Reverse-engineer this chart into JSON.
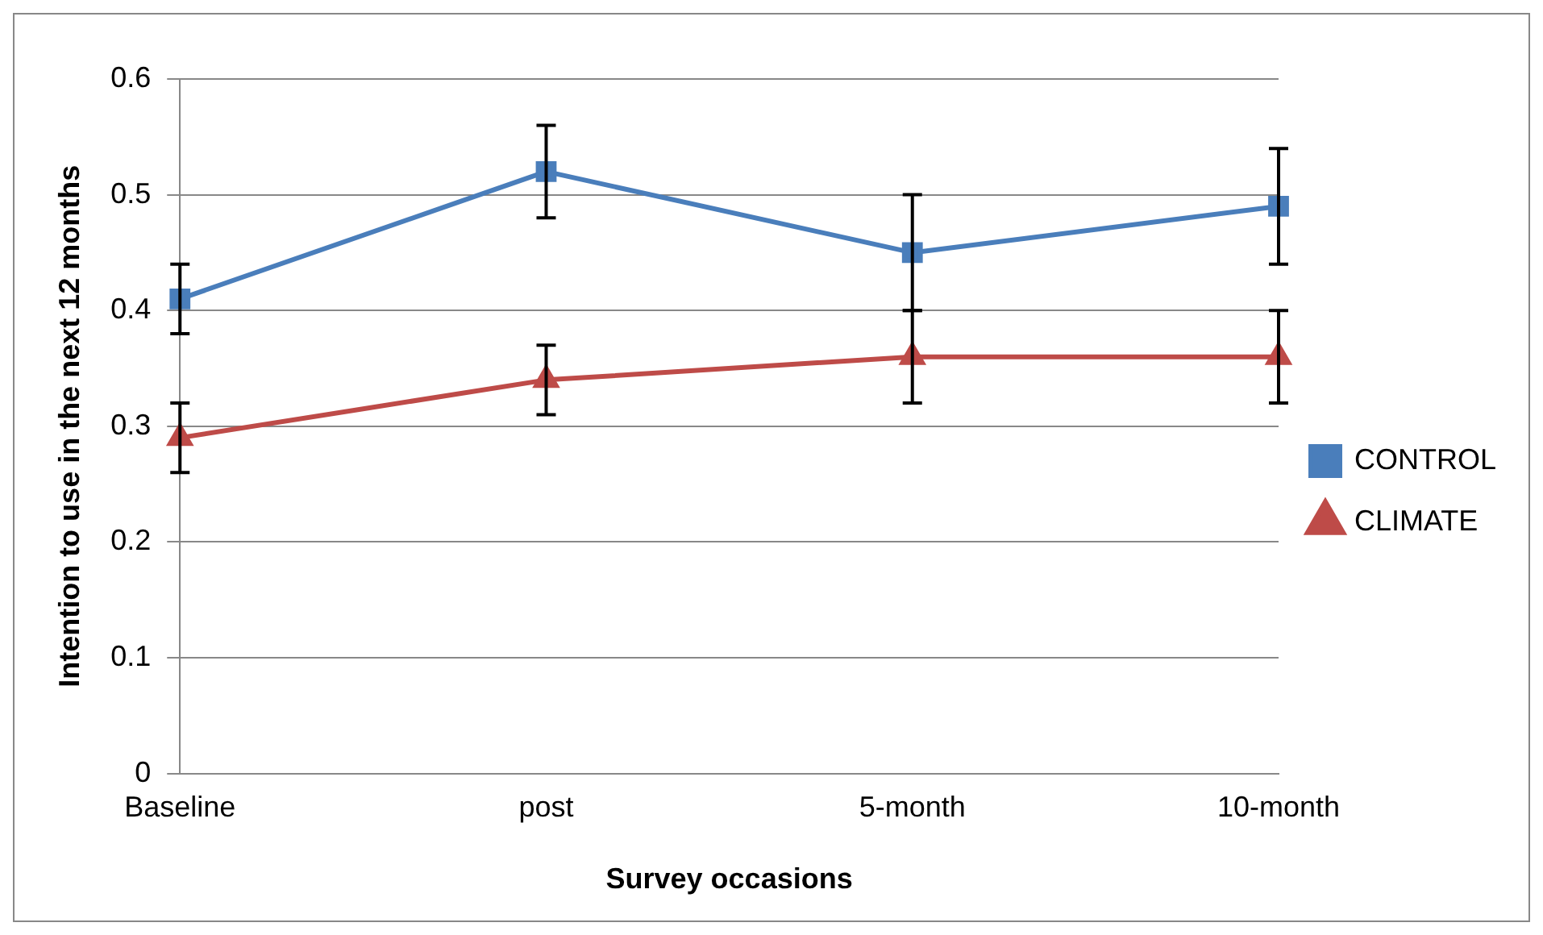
{
  "chart_data": {
    "type": "line",
    "xlabel": "Survey occasions",
    "ylabel": "Intention to use in the next 12 months",
    "categories": [
      "Baseline",
      "post",
      "5-month",
      "10-month"
    ],
    "series": [
      {
        "name": "CONTROL",
        "color": "#4a7ebb",
        "marker": "square",
        "values": [
          0.41,
          0.52,
          0.45,
          0.49
        ],
        "errors": [
          0.03,
          0.04,
          0.05,
          0.05
        ]
      },
      {
        "name": "CLIMATE",
        "color": "#be4b48",
        "marker": "triangle",
        "values": [
          0.29,
          0.34,
          0.36,
          0.36
        ],
        "errors": [
          0.03,
          0.03,
          0.04,
          0.04
        ]
      }
    ],
    "ylim": [
      0,
      0.6
    ],
    "yticks": [
      0,
      0.1,
      0.2,
      0.3,
      0.4,
      0.5,
      0.6
    ],
    "grid": "y",
    "legend": "right",
    "line_style": "solid"
  }
}
